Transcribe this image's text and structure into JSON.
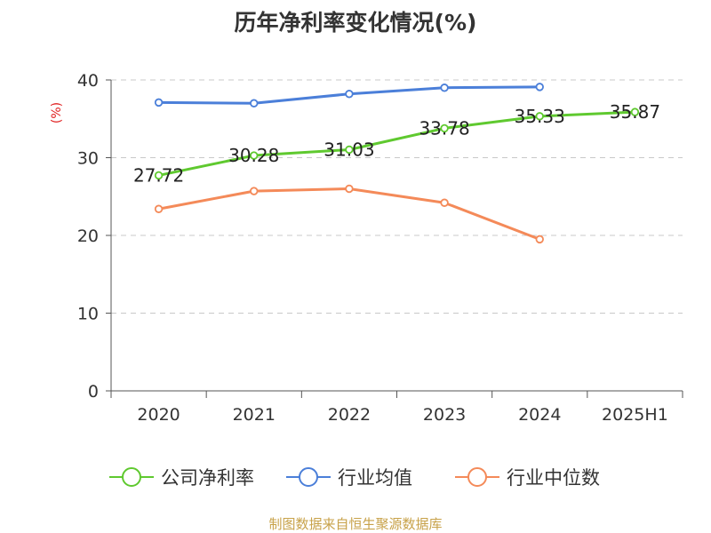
{
  "title": "历年净利率变化情况(%)",
  "source": "制图数据来自恒生聚源数据库",
  "chart_data": {
    "type": "line",
    "title": "历年净利率变化情况(%)",
    "ylabel": "(%)",
    "xlabel": "",
    "categories": [
      "2020",
      "2021",
      "2022",
      "2023",
      "2024",
      "2025H1"
    ],
    "ylim": [
      0,
      40
    ],
    "yticks": [
      0,
      10,
      20,
      30,
      40
    ],
    "grid": true,
    "legend_position": "bottom",
    "series": [
      {
        "name": "公司净利率",
        "color": "#5fc92f",
        "values": [
          27.72,
          30.28,
          31.03,
          33.78,
          35.33,
          35.87
        ],
        "labels": [
          "27.72",
          "30.28",
          "31.03",
          "33.78",
          "35.33",
          "35.87"
        ]
      },
      {
        "name": "行业均值",
        "color": "#4b7fd9",
        "values": [
          37.1,
          37.0,
          38.2,
          39.0,
          39.1,
          null
        ]
      },
      {
        "name": "行业中位数",
        "color": "#f48a59",
        "values": [
          23.4,
          25.7,
          26.0,
          24.2,
          19.5,
          null
        ]
      }
    ]
  }
}
